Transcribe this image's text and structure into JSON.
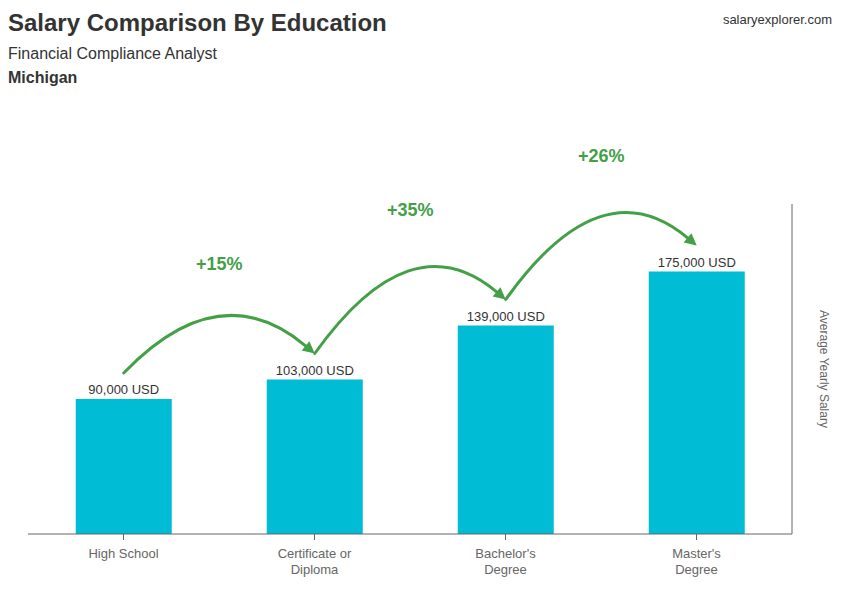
{
  "chart_data": {
    "type": "bar",
    "title": "Salary Comparison By Education",
    "subtitle": "Financial Compliance Analyst",
    "location": "Michigan",
    "categories": [
      "High School",
      "Certificate or\nDiploma",
      "Bachelor's\nDegree",
      "Master's\nDegree"
    ],
    "values": [
      90000,
      103000,
      139000,
      175000
    ],
    "value_labels": [
      "90,000 USD",
      "103,000 USD",
      "139,000 USD",
      "175,000 USD"
    ],
    "data_labels": true,
    "color": "#00bcd4",
    "ylabel": "Average Yearly Salary",
    "ylim": [
      0,
      220000
    ],
    "yticks": [],
    "tick_labels": "x",
    "grid": false,
    "annotations": [
      {
        "text": "+15%",
        "from": "High School",
        "to": "Certificate or\nDiploma",
        "color": "#43a047"
      },
      {
        "text": "+35%",
        "from": "Certificate or\nDiploma",
        "to": "Bachelor's\nDegree",
        "color": "#43a047"
      },
      {
        "text": "+26%",
        "from": "Bachelor's\nDegree",
        "to": "Master's\nDegree",
        "color": "#43a047"
      },
      {
        "text": "salaryexplorer.com"
      }
    ]
  }
}
